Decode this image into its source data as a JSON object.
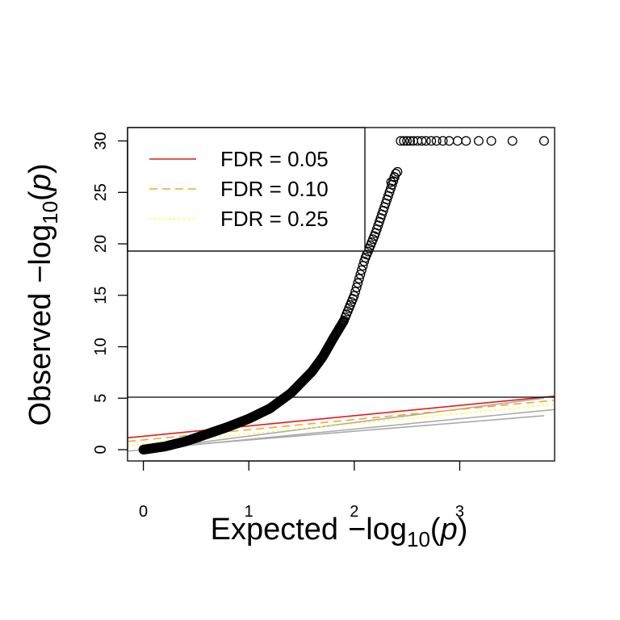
{
  "chart_data": {
    "type": "scatter",
    "title": "",
    "xlabel": {
      "prefix": "Expected",
      "minus": "−",
      "fn": "log",
      "sub": "10",
      "open": "(",
      "var": "p",
      "close": ")"
    },
    "ylabel": {
      "prefix": "Observed",
      "minus": "−",
      "fn": "log",
      "sub": "10",
      "open": "(",
      "var": "p",
      "close": ")"
    },
    "xlim": [
      -0.15,
      3.9
    ],
    "ylim": [
      -1.1,
      31.3
    ],
    "x_ticks": [
      0,
      1,
      2,
      3
    ],
    "x_tick_labels": [
      "0",
      "1",
      "2",
      "3"
    ],
    "y_ticks": [
      0,
      5,
      10,
      15,
      20,
      25,
      30
    ],
    "y_tick_labels": [
      "0",
      "5",
      "10",
      "15",
      "20",
      "25",
      "30"
    ],
    "grid": false,
    "legend_position": "top-left",
    "legend": [
      {
        "label": "FDR = 0.05",
        "color": "#e41a1c",
        "dash": "solid"
      },
      {
        "label": "FDR = 0.10",
        "color": "#f5a623",
        "dash": "dashed"
      },
      {
        "label": "FDR = 0.25",
        "color": "#ffff00",
        "dash": "dotted"
      }
    ],
    "hlines": [
      5.1,
      19.3
    ],
    "fdr_lines": [
      {
        "label": "FDR = 0.05",
        "color": "#e41a1c",
        "dash": "solid",
        "x": [
          -0.15,
          3.9
        ],
        "y": [
          1.15,
          5.2
        ]
      },
      {
        "label": "FDR = 0.10",
        "color": "#f5a623",
        "dash": "dashed",
        "x": [
          -0.15,
          3.9
        ],
        "y": [
          0.8,
          4.8
        ]
      },
      {
        "label": "FDR = 0.25",
        "color": "#ffff00",
        "dash": "dotted",
        "x": [
          -0.15,
          3.9
        ],
        "y": [
          0.4,
          4.4
        ]
      }
    ],
    "null_lines": [
      {
        "color": "#aaaaaa",
        "x": [
          -0.15,
          3.9
        ],
        "y": [
          -0.15,
          3.9
        ]
      },
      {
        "color": "#aaaaaa",
        "x": [
          0,
          3.8
        ],
        "y": [
          0.1,
          3.3
        ]
      },
      {
        "color": "#aaaaaa",
        "x": [
          0,
          3.8
        ],
        "y": [
          0.0,
          5.0
        ]
      }
    ],
    "series": [
      {
        "marker": "open-circle",
        "curve_x": [
          0.0,
          0.2,
          0.4,
          0.6,
          0.8,
          1.0,
          1.2,
          1.4,
          1.6,
          1.7,
          1.8,
          1.9,
          2.0,
          2.1,
          2.2,
          2.3,
          2.4
        ],
        "curve_y": [
          0.0,
          0.3,
          0.8,
          1.5,
          2.2,
          3.0,
          4.0,
          5.5,
          7.6,
          9.0,
          10.8,
          12.5,
          15.0,
          18.5,
          21.0,
          24.0,
          27.0
        ],
        "extra_points": [
          {
            "x": 2.35,
            "y": 26.0
          },
          {
            "x": 2.38,
            "y": 26.5
          },
          {
            "x": 2.41,
            "y": 27.0
          },
          {
            "x": 2.44,
            "y": 30.0
          },
          {
            "x": 2.47,
            "y": 30.0
          },
          {
            "x": 2.5,
            "y": 30.0
          },
          {
            "x": 2.53,
            "y": 30.0
          },
          {
            "x": 2.56,
            "y": 30.0
          },
          {
            "x": 2.6,
            "y": 30.0
          },
          {
            "x": 2.64,
            "y": 30.0
          },
          {
            "x": 2.68,
            "y": 30.0
          },
          {
            "x": 2.73,
            "y": 30.0
          },
          {
            "x": 2.78,
            "y": 30.0
          },
          {
            "x": 2.84,
            "y": 30.0
          },
          {
            "x": 2.9,
            "y": 30.0
          },
          {
            "x": 2.98,
            "y": 30.0
          },
          {
            "x": 3.06,
            "y": 30.0
          },
          {
            "x": 3.18,
            "y": 30.0
          },
          {
            "x": 3.3,
            "y": 30.0
          },
          {
            "x": 3.5,
            "y": 30.0
          },
          {
            "x": 3.8,
            "y": 30.0
          }
        ]
      }
    ]
  }
}
